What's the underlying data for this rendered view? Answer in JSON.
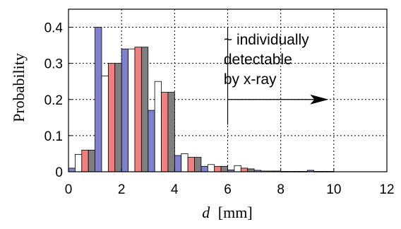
{
  "chart_data": {
    "type": "bar",
    "xlabel_var": "d",
    "xlabel_unit": "[mm]",
    "ylabel": "Probability",
    "xlim": [
      0,
      12
    ],
    "ylim": [
      0,
      0.45
    ],
    "xticks": [
      "0",
      "2",
      "4",
      "6",
      "8",
      "10",
      "12"
    ],
    "yticks": [
      "0",
      "0.1",
      "0.2",
      "0.3",
      "0.4"
    ],
    "grid": true,
    "bin_width": 1,
    "bin_starts": [
      0,
      1,
      2,
      3,
      4,
      5,
      6,
      7,
      8,
      9,
      10,
      11
    ],
    "series": [
      {
        "color": "#8080d0",
        "values": [
          0.01,
          0.4,
          0.34,
          0.17,
          0.045,
          0.015,
          0.005,
          0.004,
          0.001,
          0.004,
          0,
          0
        ]
      },
      {
        "color": "#ffffff",
        "values": [
          0.048,
          0.265,
          0.34,
          0.25,
          0.05,
          0.02,
          0.017,
          0.002,
          0.001,
          0.001,
          0,
          0
        ]
      },
      {
        "color": "#f08080",
        "values": [
          0.06,
          0.3,
          0.345,
          0.22,
          0.04,
          0.015,
          0.01,
          0.002,
          0.001,
          0.001,
          0,
          0
        ]
      },
      {
        "color": "#7f7f7f",
        "values": [
          0.06,
          0.3,
          0.345,
          0.22,
          0.04,
          0.015,
          0.008,
          0.002,
          0.001,
          0.001,
          0,
          0
        ]
      }
    ],
    "annotation": {
      "lines": [
        "~ individually",
        "detectable",
        "by x-ray"
      ],
      "arrow_from_x": 6.0,
      "arrow_to_x": 9.8,
      "arrow_y": 0.2
    }
  }
}
